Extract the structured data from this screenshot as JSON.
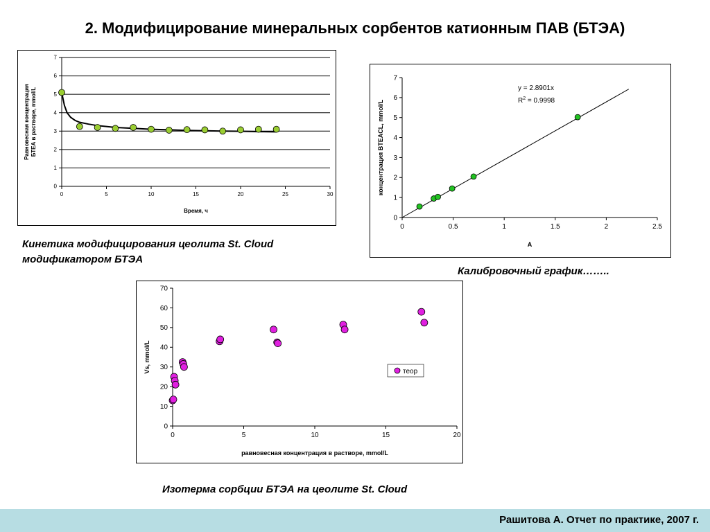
{
  "slide": {
    "title": "2. Модифицирование минеральных сорбентов катионным ПАВ (БТЭА)",
    "footer": "Рашитова  А.   Отчет по практике, 2007 г."
  },
  "captions": {
    "kinetics": "Кинетика модифицирования цеолита St. Cloud модификатором БТЭА",
    "calibration": "Калибровочный график……..",
    "isotherm": "Изотерма сорбции БТЭА на цеолите St. Cloud"
  },
  "chart_data": [
    {
      "type": "scatter",
      "id": "kinetics",
      "title": "",
      "xlabel": "Время, ч",
      "ylabel": "Равновесная концентрация БТЕА в растворе, mmol/L",
      "xlim": [
        0,
        30
      ],
      "ylim": [
        0,
        7
      ],
      "xticks": [
        0,
        5,
        10,
        15,
        20,
        25,
        30
      ],
      "yticks": [
        0,
        1,
        2,
        3,
        4,
        5,
        6,
        7
      ],
      "grid": "horizontal",
      "marker_color": "#9acd32",
      "series": [
        {
          "x": [
            0,
            2,
            4,
            6,
            8,
            10,
            12,
            14,
            16,
            18,
            20,
            22,
            24
          ],
          "values": [
            5.1,
            3.25,
            3.2,
            3.15,
            3.2,
            3.1,
            3.05,
            3.08,
            3.07,
            3.0,
            3.07,
            3.1,
            3.1
          ]
        }
      ],
      "trend_line": {
        "x": [
          0,
          0.3,
          0.6,
          1,
          1.5,
          2,
          3,
          4,
          5,
          6,
          8,
          10,
          12,
          14,
          16,
          18,
          20,
          22,
          24
        ],
        "y": [
          5.1,
          4.4,
          4.0,
          3.75,
          3.58,
          3.48,
          3.38,
          3.3,
          3.25,
          3.2,
          3.15,
          3.1,
          3.07,
          3.04,
          3.02,
          3.0,
          2.99,
          2.97,
          2.96
        ]
      }
    },
    {
      "type": "scatter",
      "id": "calibration",
      "title": "",
      "xlabel": "A",
      "ylabel": "концентрация BTEACL, mmol/L",
      "xlim": [
        0,
        2.5
      ],
      "ylim": [
        0,
        7
      ],
      "xticks": [
        0,
        0.5,
        1,
        1.5,
        2,
        2.5
      ],
      "yticks": [
        0,
        1,
        2,
        3,
        4,
        5,
        6,
        7
      ],
      "grid": "none",
      "marker_color": "#22c222",
      "series": [
        {
          "x": [
            0.17,
            0.31,
            0.35,
            0.49,
            0.7,
            1.72
          ],
          "values": [
            0.55,
            0.95,
            1.03,
            1.45,
            2.05,
            5.02
          ]
        }
      ],
      "trend_line": {
        "x": [
          0,
          2.22
        ],
        "y": [
          0,
          6.42
        ]
      },
      "annotations": {
        "equation": "y = 2.8901x",
        "r2_prefix": "R",
        "r2_sup": "2",
        "r2_value": " = 0.9998"
      }
    },
    {
      "type": "scatter",
      "id": "isotherm",
      "title": "",
      "xlabel": "равновесная концентрация в растворе, mmol/L",
      "ylabel": "Vs, mmol/L",
      "xlim": [
        0,
        20
      ],
      "ylim": [
        0,
        70
      ],
      "xticks": [
        0,
        5,
        10,
        15,
        20
      ],
      "yticks": [
        0,
        10,
        20,
        30,
        40,
        50,
        60,
        70
      ],
      "grid": "none",
      "legend_position": "right",
      "marker_color": "#e020e0",
      "series": [
        {
          "name": "теор",
          "x": [
            0.0,
            0.05,
            0.1,
            0.15,
            0.2,
            0.7,
            0.75,
            0.8,
            3.3,
            3.35,
            7.1,
            7.35,
            7.4,
            12.0,
            12.1,
            17.5,
            17.7
          ],
          "values": [
            13,
            13.5,
            25,
            23,
            21,
            32.5,
            31.5,
            30,
            43,
            44,
            49,
            42.5,
            42,
            51.5,
            49,
            58,
            52.5
          ]
        }
      ]
    }
  ]
}
